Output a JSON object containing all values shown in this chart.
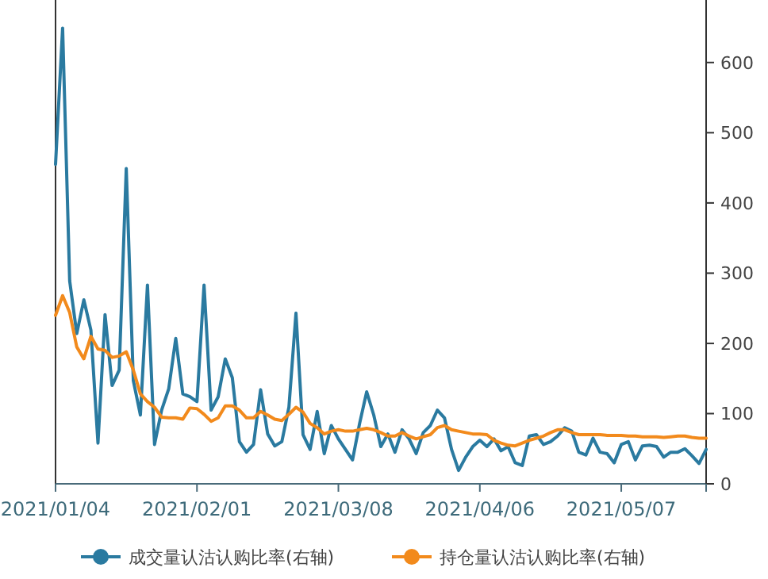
{
  "chart_data": {
    "type": "line",
    "categories": [
      "2021/01/04",
      null,
      null,
      null,
      null,
      null,
      null,
      null,
      null,
      null,
      null,
      null,
      null,
      null,
      null,
      null,
      null,
      null,
      null,
      null,
      "2021/02/01",
      null,
      null,
      null,
      null,
      null,
      null,
      null,
      null,
      null,
      null,
      null,
      null,
      null,
      null,
      null,
      null,
      null,
      null,
      null,
      "2021/03/08",
      null,
      null,
      null,
      null,
      null,
      null,
      null,
      null,
      null,
      null,
      null,
      null,
      null,
      null,
      null,
      null,
      null,
      null,
      null,
      "2021/04/06",
      null,
      null,
      null,
      null,
      null,
      null,
      null,
      null,
      null,
      null,
      null,
      null,
      null,
      null,
      null,
      null,
      null,
      null,
      null,
      "2021/05/07",
      null,
      null,
      null,
      null,
      null,
      null,
      null,
      null,
      null,
      null,
      null,
      null
    ],
    "series": [
      {
        "name": "成交量认沽认购比率(右轴)",
        "color": "#2a7aa0",
        "axis": "y2",
        "values": [
          455,
          649,
          289,
          214,
          262,
          219,
          58,
          241,
          140,
          162,
          449,
          147,
          98,
          283,
          56,
          105,
          135,
          207,
          128,
          124,
          117,
          283,
          105,
          124,
          178,
          151,
          60,
          45,
          56,
          134,
          71,
          54,
          60,
          109,
          243,
          70,
          49,
          103,
          43,
          83,
          64,
          49,
          34,
          86,
          131,
          98,
          53,
          71,
          45,
          77,
          64,
          43,
          73,
          83,
          105,
          94,
          49,
          19,
          38,
          53,
          62,
          53,
          64,
          47,
          53,
          30,
          26,
          68,
          70,
          56,
          60,
          68,
          80,
          75,
          45,
          41,
          65,
          45,
          43,
          30,
          56,
          60,
          34,
          54,
          55,
          53,
          38,
          45,
          45,
          50,
          40,
          29,
          49
        ]
      },
      {
        "name": "持仓量认沽认购比率(右轴)",
        "color": "#f28a1c",
        "axis": "y2",
        "values": [
          240,
          268,
          244,
          195,
          178,
          210,
          192,
          190,
          180,
          182,
          188,
          162,
          128,
          117,
          109,
          95,
          94,
          94,
          92,
          108,
          107,
          99,
          89,
          94,
          111,
          111,
          105,
          94,
          94,
          103,
          98,
          92,
          90,
          99,
          109,
          102,
          86,
          80,
          71,
          75,
          77,
          75,
          75,
          77,
          79,
          77,
          73,
          68,
          68,
          73,
          68,
          64,
          67,
          70,
          80,
          83,
          77,
          75,
          73,
          71,
          71,
          70,
          62,
          58,
          55,
          54,
          58,
          62,
          65,
          68,
          73,
          77,
          77,
          73,
          70,
          70,
          70,
          70,
          69,
          69,
          69,
          68,
          68,
          67,
          67,
          67,
          66,
          67,
          68,
          68,
          66,
          65,
          65
        ]
      }
    ],
    "y2lim": [
      0,
      689
    ],
    "y2ticks": [
      0,
      100,
      200,
      300,
      400,
      500,
      600
    ],
    "legend": "bottom"
  }
}
